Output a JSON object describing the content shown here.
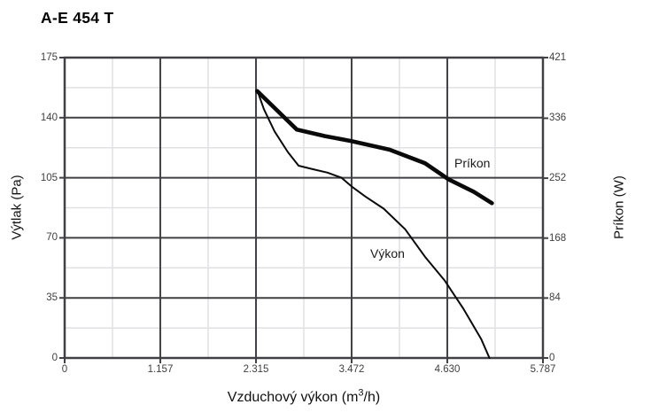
{
  "title": "A-E 454 T",
  "colors": {
    "background": "#ffffff",
    "grid_major": "#404045",
    "grid_minor": "#e1e1e4",
    "curve": "#0a0a0a",
    "tick_label": "#3f3f3f"
  },
  "chart_data": {
    "type": "line",
    "title": "A-E 454 T",
    "xlabel": "Vzduchový výkon (m³/h)",
    "xlabel_parts": {
      "pre": "Vzduchový výkon (m",
      "sup": "3",
      "post": "/h)"
    },
    "x_axis": {
      "min": 0,
      "max": 5.787,
      "ticks": [
        0,
        1.157,
        2.315,
        3.472,
        4.63,
        5.787
      ],
      "tick_labels": [
        "0",
        "1.157",
        "2.315",
        "3.472",
        "4.630",
        "5.787"
      ]
    },
    "y_left_axis": {
      "label": "Výtlak (Pa)",
      "min": 0,
      "max": 175,
      "ticks": [
        0,
        35,
        70,
        105,
        140,
        175
      ],
      "tick_labels": [
        "0",
        "35",
        "70",
        "105",
        "140",
        "175"
      ]
    },
    "y_right_axis": {
      "label": "Príkon (W)",
      "min": 0,
      "max": 421,
      "ticks": [
        0,
        84,
        168,
        252,
        336,
        421
      ],
      "tick_labels": [
        "0",
        "84",
        "168",
        "252",
        "336",
        "421"
      ]
    },
    "grid": {
      "major": true,
      "minor": true
    },
    "legend_position": "inline-annotations",
    "series": [
      {
        "name": "Výkon",
        "axis": "left",
        "unit": "Pa",
        "style": "thin",
        "points": [
          [
            2.33,
            156
          ],
          [
            2.41,
            145
          ],
          [
            2.54,
            132
          ],
          [
            2.7,
            120
          ],
          [
            2.83,
            112
          ],
          [
            3.0,
            110
          ],
          [
            3.18,
            108
          ],
          [
            3.35,
            105
          ],
          [
            3.47,
            100
          ],
          [
            3.64,
            94
          ],
          [
            3.86,
            87
          ],
          [
            4.12,
            75
          ],
          [
            4.36,
            59
          ],
          [
            4.6,
            45
          ],
          [
            4.82,
            29
          ],
          [
            5.04,
            11
          ],
          [
            5.14,
            0
          ]
        ]
      },
      {
        "name": "Príkon",
        "axis": "right",
        "unit": "W",
        "style": "thick",
        "points": [
          [
            2.33,
            374
          ],
          [
            2.81,
            320
          ],
          [
            3.15,
            311
          ],
          [
            3.47,
            304
          ],
          [
            3.93,
            292
          ],
          [
            4.36,
            273
          ],
          [
            4.65,
            250
          ],
          [
            4.95,
            233
          ],
          [
            5.17,
            217
          ]
        ]
      }
    ],
    "annotations": [
      {
        "text": "Príkon",
        "series": "Príkon"
      },
      {
        "text": "Výkon",
        "series": "Výkon"
      }
    ]
  }
}
